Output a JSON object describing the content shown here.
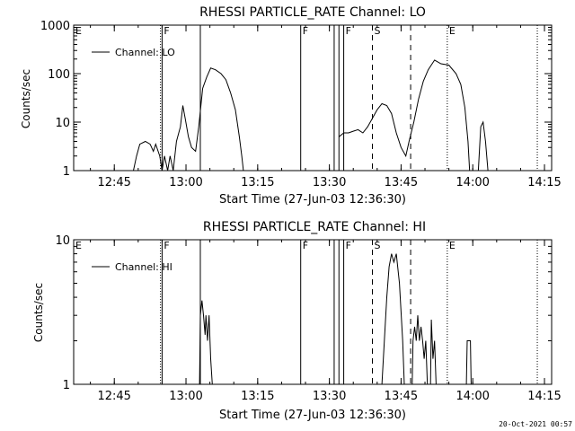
{
  "footer": {
    "timestamp": "20-Oct-2021 00:57"
  },
  "chart_data": [
    {
      "type": "line",
      "title": "RHESSI PARTICLE_RATE Channel: LO",
      "xlabel": "Start Time (27-Jun-03 12:36:30)",
      "ylabel": "Counts/sec",
      "yscale": "log",
      "xlim": [
        "12:36:30",
        "14:16:30"
      ],
      "ylim": [
        1,
        1000
      ],
      "x_ticks": [
        "12:45",
        "13:00",
        "13:15",
        "13:30",
        "13:45",
        "14:00",
        "14:15"
      ],
      "y_ticks": [
        "1",
        "10",
        "100",
        "1000"
      ],
      "grid": false,
      "legend": {
        "position": "top-left",
        "entries": [
          "Channel: LO"
        ]
      },
      "series": [
        {
          "name": "Channel: LO",
          "segments": [
            [
              [
                "12:49:00",
                1
              ],
              [
                "12:49:40",
                2
              ],
              [
                "12:50:20",
                3.5
              ],
              [
                "12:51:30",
                4
              ],
              [
                "12:52:30",
                3.5
              ],
              [
                "12:53:10",
                2.5
              ],
              [
                "12:53:40",
                3.5
              ],
              [
                "12:54:30",
                2
              ],
              [
                "12:55:00",
                1
              ],
              [
                "12:55:30",
                2
              ],
              [
                "12:56:10",
                1
              ],
              [
                "12:56:40",
                2
              ],
              [
                "12:57:20",
                1
              ],
              [
                "12:58:00",
                4
              ],
              [
                "12:58:50",
                8
              ],
              [
                "12:59:20",
                22
              ],
              [
                "12:59:50",
                12
              ],
              [
                "13:00:30",
                5
              ],
              [
                "13:01:10",
                3
              ],
              [
                "13:02:00",
                2.5
              ],
              [
                "13:02:40",
                8
              ],
              [
                "13:03:30",
                50
              ],
              [
                "13:04:20",
                85
              ],
              [
                "13:05:10",
                130
              ],
              [
                "13:06:10",
                120
              ],
              [
                "13:07:20",
                100
              ],
              [
                "13:08:20",
                75
              ],
              [
                "13:09:20",
                40
              ],
              [
                "13:10:20",
                18
              ],
              [
                "13:11:10",
                5
              ],
              [
                "13:11:40",
                2
              ],
              [
                "13:12:00",
                1
              ]
            ],
            [
              [
                "13:32:00",
                5
              ],
              [
                "13:33:00",
                6
              ],
              [
                "13:34:00",
                6
              ],
              [
                "13:35:00",
                6.5
              ],
              [
                "13:36:00",
                7
              ],
              [
                "13:37:00",
                6
              ],
              [
                "13:38:00",
                8
              ],
              [
                "13:39:00",
                12
              ],
              [
                "13:40:00",
                18
              ],
              [
                "13:41:00",
                24
              ],
              [
                "13:42:00",
                22
              ],
              [
                "13:43:00",
                15
              ],
              [
                "13:44:00",
                6
              ],
              [
                "13:45:00",
                3
              ],
              [
                "13:46:00",
                2
              ],
              [
                "13:46:40",
                4
              ],
              [
                "13:47:40",
                10
              ],
              [
                "13:48:40",
                30
              ],
              [
                "13:49:40",
                70
              ],
              [
                "13:50:40",
                120
              ],
              [
                "13:52:00",
                190
              ],
              [
                "13:53:20",
                160
              ],
              [
                "13:55:00",
                150
              ],
              [
                "13:56:30",
                100
              ],
              [
                "13:57:30",
                60
              ],
              [
                "13:58:20",
                20
              ],
              [
                "13:59:00",
                4
              ],
              [
                "13:59:20",
                1
              ]
            ],
            [
              [
                "14:01:10",
                1
              ],
              [
                "14:01:40",
                8
              ],
              [
                "14:02:10",
                10
              ],
              [
                "14:02:40",
                4
              ],
              [
                "14:03:10",
                1
              ]
            ]
          ]
        }
      ],
      "markers": {
        "solid": [
          "12:55:00",
          "13:03:00",
          "13:24:00",
          "13:31:00",
          "13:32:00",
          "13:33:00"
        ],
        "dashed": [
          "13:39:00",
          "13:47:00"
        ],
        "dotted": [
          "12:54:40",
          "13:54:40",
          "14:13:30"
        ]
      },
      "annotations": [
        {
          "text": "E",
          "at": "12:36:30"
        },
        {
          "text": "F",
          "at": "12:55:00"
        },
        {
          "text": "F",
          "at": "13:24:00"
        },
        {
          "text": "F",
          "at": "13:33:00"
        },
        {
          "text": "S",
          "at": "13:39:00"
        },
        {
          "text": "E",
          "at": "13:54:40"
        }
      ]
    },
    {
      "type": "line",
      "title": "RHESSI PARTICLE_RATE Channel: HI",
      "xlabel": "Start Time (27-Jun-03 12:36:30)",
      "ylabel": "Counts/sec",
      "yscale": "log",
      "xlim": [
        "12:36:30",
        "14:16:30"
      ],
      "ylim": [
        1,
        10
      ],
      "x_ticks": [
        "12:45",
        "13:00",
        "13:15",
        "13:30",
        "13:45",
        "14:00",
        "14:15"
      ],
      "y_ticks": [
        "1",
        "10"
      ],
      "grid": false,
      "legend": {
        "position": "top-left",
        "entries": [
          "Channel: HI"
        ]
      },
      "series": [
        {
          "name": "Channel: HI",
          "segments": [
            [
              [
                "13:02:50",
                1
              ],
              [
                "13:03:00",
                3
              ],
              [
                "13:03:20",
                3.8
              ],
              [
                "13:03:40",
                3
              ],
              [
                "13:04:00",
                2.2
              ],
              [
                "13:04:10",
                3
              ],
              [
                "13:04:30",
                2
              ],
              [
                "13:04:50",
                3
              ],
              [
                "13:05:10",
                1.5
              ],
              [
                "13:05:30",
                1
              ]
            ],
            [
              [
                "13:41:00",
                1
              ],
              [
                "13:41:30",
                2
              ],
              [
                "13:42:00",
                4
              ],
              [
                "13:42:30",
                6.5
              ],
              [
                "13:43:00",
                8
              ],
              [
                "13:43:30",
                7
              ],
              [
                "13:44:00",
                8
              ],
              [
                "13:44:40",
                5
              ],
              [
                "13:45:20",
                2
              ],
              [
                "13:45:40",
                1
              ]
            ],
            [
              [
                "13:47:20",
                1
              ],
              [
                "13:47:30",
                2
              ],
              [
                "13:47:50",
                2.5
              ],
              [
                "13:48:10",
                2
              ],
              [
                "13:48:30",
                3
              ],
              [
                "13:48:50",
                2
              ],
              [
                "13:49:10",
                2.5
              ],
              [
                "13:49:30",
                2
              ],
              [
                "13:49:50",
                1.5
              ],
              [
                "13:50:10",
                2
              ],
              [
                "13:50:30",
                1
              ]
            ],
            [
              [
                "13:51:10",
                1
              ],
              [
                "13:51:20",
                2.8
              ],
              [
                "13:51:40",
                1.5
              ],
              [
                "13:52:00",
                2
              ],
              [
                "13:52:20",
                1
              ]
            ],
            [
              [
                "13:58:40",
                1
              ],
              [
                "13:58:50",
                2
              ],
              [
                "13:59:30",
                2
              ],
              [
                "13:59:40",
                1
              ]
            ]
          ]
        }
      ],
      "markers": {
        "solid": [
          "12:55:00",
          "13:03:00",
          "13:24:00",
          "13:31:00",
          "13:32:00",
          "13:33:00"
        ],
        "dashed": [
          "13:39:00",
          "13:47:00"
        ],
        "dotted": [
          "12:54:40",
          "13:54:40",
          "14:13:30"
        ]
      },
      "annotations": [
        {
          "text": "E",
          "at": "12:36:30"
        },
        {
          "text": "F",
          "at": "12:55:00"
        },
        {
          "text": "F",
          "at": "13:24:00"
        },
        {
          "text": "F",
          "at": "13:33:00"
        },
        {
          "text": "S",
          "at": "13:39:00"
        },
        {
          "text": "E",
          "at": "13:54:40"
        }
      ]
    }
  ]
}
